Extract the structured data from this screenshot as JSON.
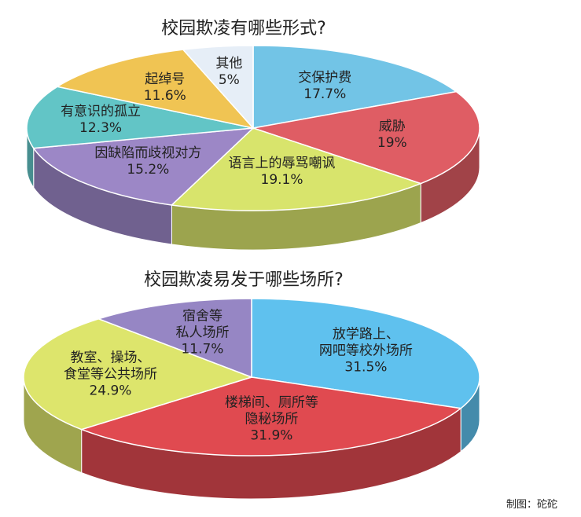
{
  "chart_data": [
    {
      "type": "pie",
      "title": "校园欺凌有哪些形式?",
      "categories": [
        "交保护费",
        "威胁",
        "语言上的辱骂嘲讽",
        "因缺陷而歧视对方",
        "有意识的孤立",
        "起绰号",
        "其他"
      ],
      "values": [
        17.7,
        19,
        19.1,
        15.2,
        12.3,
        11.6,
        5
      ],
      "value_labels": [
        "17.7%",
        "19%",
        "19.1%",
        "15.2%",
        "12.3%",
        "11.6%",
        "5%"
      ],
      "colors": [
        "#72c4e6",
        "#df5d64",
        "#d8e46c",
        "#9c87c6",
        "#62c5c6",
        "#f0c453",
        "#e6eef7"
      ]
    },
    {
      "type": "pie",
      "title": "校园欺凌易发于哪些场所?",
      "categories": [
        "放学路上、\n网吧等校外场所",
        "楼梯间、厕所等\n隐秘场所",
        "教室、操场、\n食堂等公共场所",
        "宿舍等\n私人场所"
      ],
      "values": [
        31.5,
        31.9,
        24.9,
        11.7
      ],
      "value_labels": [
        "31.5%",
        "31.9%",
        "24.9%",
        "11.7%"
      ],
      "colors": [
        "#5fc1ee",
        "#e04a50",
        "#dde56c",
        "#9686c4"
      ]
    }
  ],
  "credit": "制图：砣砣"
}
